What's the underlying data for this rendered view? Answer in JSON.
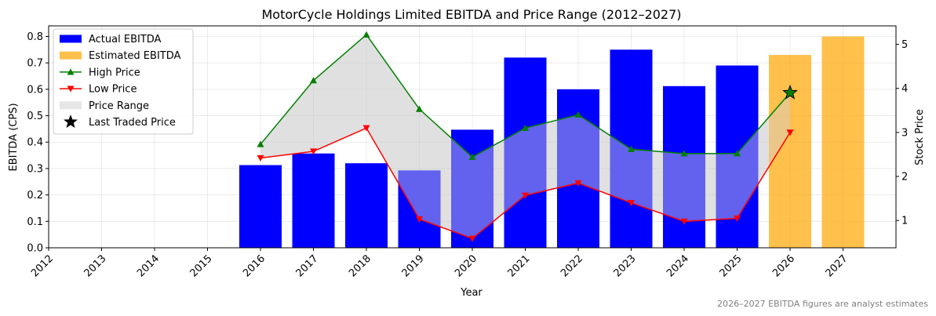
{
  "chart_data": {
    "type": "bar",
    "title": "MotorCycle Holdings Limited EBITDA and Price Range (2012–2027)",
    "xlabel": "Year",
    "ylabel": "EBITDA (CPS)",
    "y2label": "Stock Price",
    "note": "2026–2027 EBITDA figures are analyst estimates",
    "x_ticks": [
      "2012",
      "2013",
      "2014",
      "2015",
      "2016",
      "2017",
      "2018",
      "2019",
      "2020",
      "2021",
      "2022",
      "2023",
      "2024",
      "2025",
      "2026",
      "2027"
    ],
    "xlim": [
      2012,
      2028
    ],
    "ylim": [
      0,
      0.84
    ],
    "y_ticks": [
      "0.0",
      "0.1",
      "0.2",
      "0.3",
      "0.4",
      "0.5",
      "0.6",
      "0.7",
      "0.8"
    ],
    "y2lim": [
      0.38,
      5.42
    ],
    "y2_ticks": [
      "1",
      "2",
      "3",
      "4",
      "5"
    ],
    "grid": true,
    "legend_position": "top-left",
    "colors": {
      "actual": "#0000ff",
      "estimated": "#ffa500",
      "high": "#008000",
      "low": "#ff0000",
      "range": "#808080",
      "last": "#008000"
    },
    "series": [
      {
        "name": "Actual EBITDA",
        "type": "bar",
        "x": [
          2016,
          2017,
          2018,
          2019,
          2020,
          2021,
          2022,
          2023,
          2024,
          2025
        ],
        "values": [
          0.313,
          0.357,
          0.32,
          0.293,
          0.447,
          0.72,
          0.6,
          0.75,
          0.612,
          0.69
        ]
      },
      {
        "name": "Estimated EBITDA",
        "type": "bar",
        "x": [
          2026,
          2027
        ],
        "values": [
          0.73,
          0.8
        ]
      },
      {
        "name": "High Price",
        "type": "line",
        "axis": "right",
        "x": [
          2016,
          2017,
          2018,
          2019,
          2020,
          2021,
          2022,
          2023,
          2024,
          2025,
          2026
        ],
        "values": [
          2.73,
          4.18,
          5.22,
          3.53,
          2.44,
          3.1,
          3.4,
          2.62,
          2.52,
          2.52,
          3.9
        ]
      },
      {
        "name": "Low Price",
        "type": "line",
        "axis": "right",
        "x": [
          2016,
          2017,
          2018,
          2019,
          2020,
          2021,
          2022,
          2023,
          2024,
          2025,
          2026
        ],
        "values": [
          2.42,
          2.57,
          3.1,
          1.03,
          0.59,
          1.57,
          1.85,
          1.4,
          0.98,
          1.05,
          3.0
        ]
      },
      {
        "name": "Price Range",
        "type": "area",
        "axis": "right"
      },
      {
        "name": "Last Traded Price",
        "type": "scatter",
        "axis": "right",
        "x": [
          2026
        ],
        "values": [
          3.9
        ]
      }
    ]
  }
}
